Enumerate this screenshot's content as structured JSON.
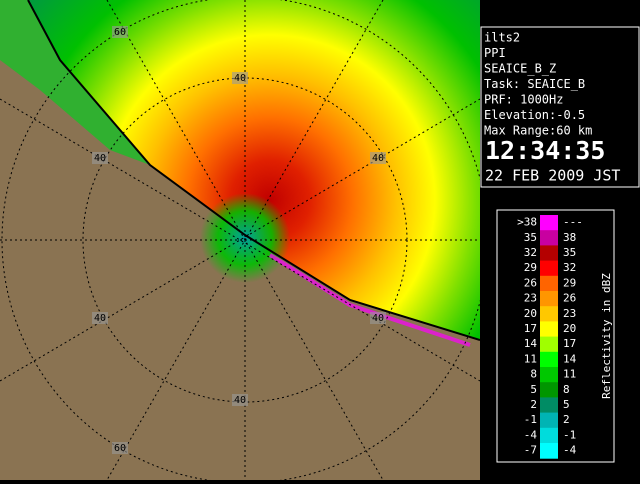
{
  "info": {
    "lines": [
      "ilts2",
      "PPI",
      "SEAICE_B_Z",
      "Task: SEAICE_B",
      "PRF: 1000Hz",
      "Elevation:-0.5",
      "Max Range:60 km"
    ],
    "time": "12:34:35",
    "date": "22 FEB 2009 JST"
  },
  "range_labels": [
    "60",
    "40",
    "40",
    "40",
    "40",
    "40",
    "40",
    "60"
  ],
  "legend": {
    "title": "Reflectivity in dBZ",
    "rows": [
      {
        "label": ">38",
        "upper": "---",
        "color": "#ff00ff"
      },
      {
        "label": "35",
        "upper": "38",
        "color": "#c800a0"
      },
      {
        "label": "32",
        "upper": "35",
        "color": "#b40000"
      },
      {
        "label": "29",
        "upper": "32",
        "color": "#ff0000"
      },
      {
        "label": "26",
        "upper": "29",
        "color": "#ff6400"
      },
      {
        "label": "23",
        "upper": "26",
        "color": "#ff9600"
      },
      {
        "label": "20",
        "upper": "23",
        "color": "#ffc800"
      },
      {
        "label": "17",
        "upper": "20",
        "color": "#ffff00"
      },
      {
        "label": "14",
        "upper": "17",
        "color": "#a0ff00"
      },
      {
        "label": "11",
        "upper": "14",
        "color": "#00ff00"
      },
      {
        "label": "8",
        "upper": "11",
        "color": "#00c800"
      },
      {
        "label": "5",
        "upper": "8",
        "color": "#009600"
      },
      {
        "label": "2",
        "upper": "5",
        "color": "#008c64"
      },
      {
        "label": "-1",
        "upper": "2",
        "color": "#00b4b4"
      },
      {
        "label": "-4",
        "upper": "-1",
        "color": "#00dcdc"
      },
      {
        "label": "-7",
        "upper": "-4",
        "color": "#00ffff"
      }
    ]
  }
}
